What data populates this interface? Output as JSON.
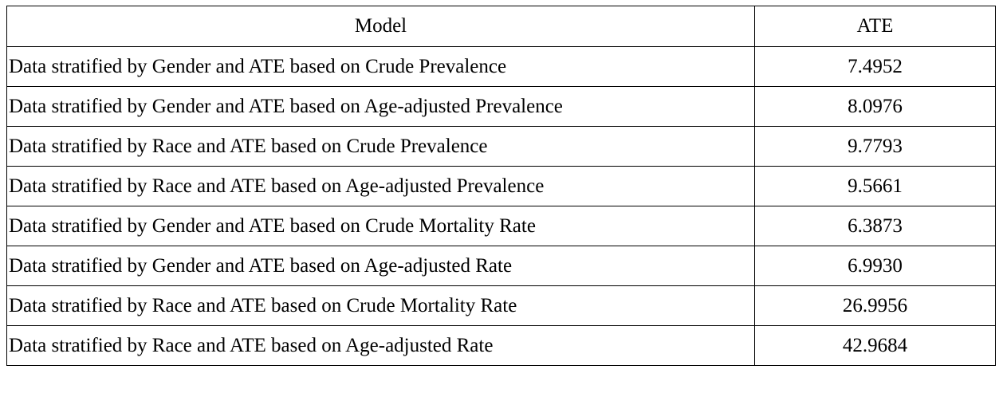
{
  "table": {
    "headers": {
      "model": "Model",
      "ate": "ATE"
    },
    "rows": [
      {
        "model": "Data stratified by Gender and ATE based on Crude Prevalence",
        "ate": "7.4952"
      },
      {
        "model": "Data stratified by Gender and ATE based on Age-adjusted Prevalence",
        "ate": "8.0976"
      },
      {
        "model": "Data stratified by Race and ATE based on Crude Prevalence",
        "ate": "9.7793"
      },
      {
        "model": "Data stratified by Race and ATE based on Age-adjusted Prevalence",
        "ate": "9.5661"
      },
      {
        "model": "Data stratified by Gender and ATE based on Crude Mortality Rate",
        "ate": "6.3873"
      },
      {
        "model": "Data stratified by Gender and ATE based on Age-adjusted Rate",
        "ate": "6.9930"
      },
      {
        "model": "Data stratified by Race and ATE based on Crude Mortality Rate",
        "ate": "26.9956"
      },
      {
        "model": "Data stratified by Race and ATE based on Age-adjusted Rate",
        "ate": "42.9684"
      }
    ]
  }
}
